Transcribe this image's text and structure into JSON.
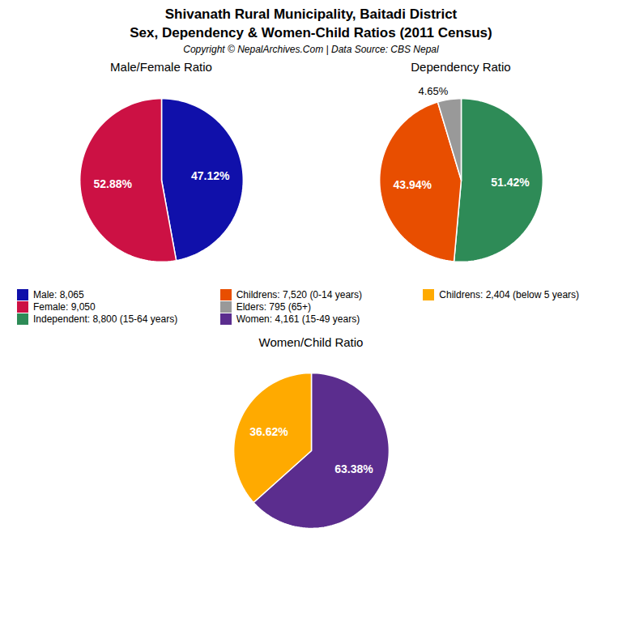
{
  "title": "Shivanath Rural Municipality, Baitadi District",
  "subtitle": "Sex, Dependency & Women-Child Ratios (2011 Census)",
  "annotations": [
    "Copyright © NepalArchives.Com | Data Source: CBS Nepal"
  ],
  "chart_data": [
    {
      "type": "pie",
      "title": "Male/Female Ratio",
      "categories": [
        "Male: 8,065",
        "Female: 9,050"
      ],
      "values": [
        47.12,
        52.88
      ],
      "value_labels": [
        "47.12%",
        "52.88%"
      ],
      "colors": [
        "#1010AA",
        "#CC1144"
      ],
      "data_labels": true,
      "legend": "bottom"
    },
    {
      "type": "pie",
      "title": "Dependency Ratio",
      "categories": [
        "Independent: 8,800 (15-64 years)",
        "Childrens: 7,520 (0-14 years)",
        "Elders: 795 (65+)"
      ],
      "values": [
        51.42,
        43.94,
        4.65
      ],
      "value_labels": [
        "51.42%",
        "43.94%",
        "4.65%"
      ],
      "colors": [
        "#2E8B57",
        "#E84E00",
        "#999999"
      ],
      "data_labels": true,
      "legend": "bottom"
    },
    {
      "type": "pie",
      "title": "Women/Child Ratio",
      "categories": [
        "Women: 4,161 (15-49 years)",
        "Childrens: 2,404 (below 5 years)"
      ],
      "values": [
        63.38,
        36.62
      ],
      "value_labels": [
        "63.38%",
        "36.62%"
      ],
      "colors": [
        "#5B2D8E",
        "#FFAA00"
      ],
      "data_labels": true,
      "legend": "top"
    }
  ]
}
